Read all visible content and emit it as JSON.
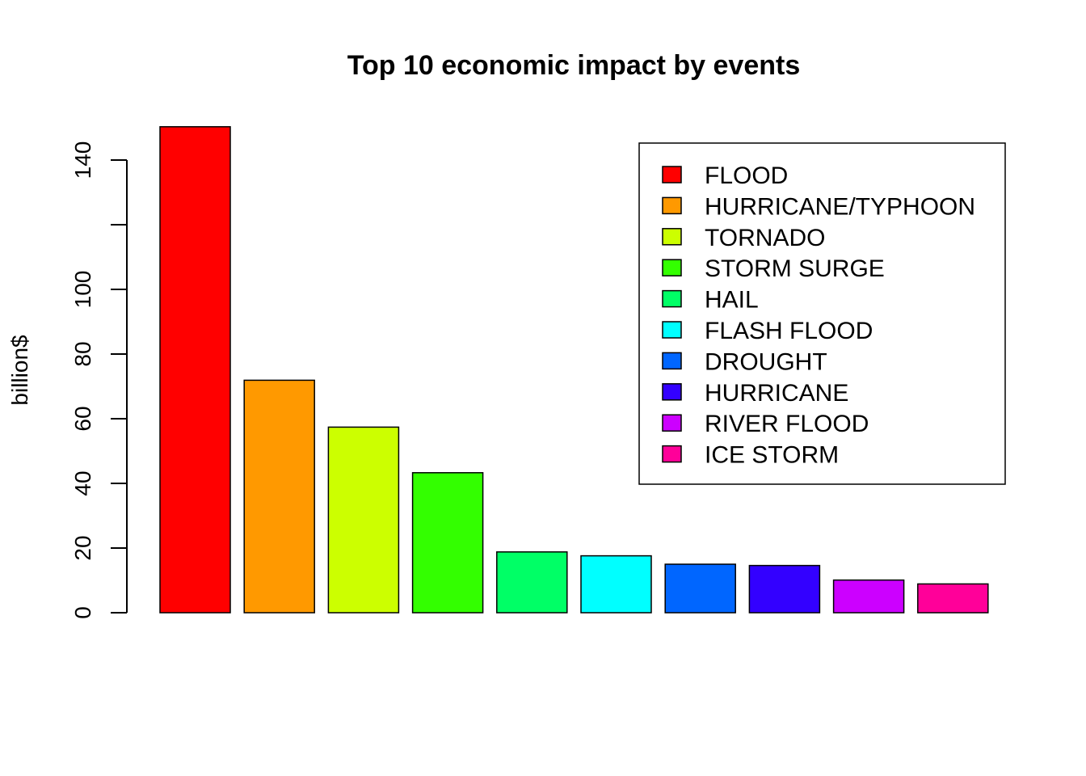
{
  "chart_data": {
    "type": "bar",
    "title": "Top 10 economic impact by events",
    "xlabel": "",
    "ylabel": "billion$",
    "ylim": [
      0,
      150.5
    ],
    "yticks": [
      0,
      20,
      40,
      60,
      80,
      100,
      120,
      140
    ],
    "ytick_labels": [
      "0",
      "20",
      "40",
      "60",
      "80",
      "100",
      "",
      "140"
    ],
    "categories": [
      "FLOOD",
      "HURRICANE/TYPHOON",
      "TORNADO",
      "STORM SURGE",
      "HAIL",
      "FLASH FLOOD",
      "DROUGHT",
      "HURRICANE",
      "RIVER FLOOD",
      "ICE STORM"
    ],
    "values": [
      150.3,
      71.9,
      57.4,
      43.3,
      18.8,
      17.6,
      15.0,
      14.6,
      10.1,
      8.9
    ],
    "colors": [
      "#FF0000",
      "#FF9900",
      "#CCFF00",
      "#33FF00",
      "#00FF66",
      "#00FFFF",
      "#0066FF",
      "#3300FF",
      "#CC00FF",
      "#FF0099"
    ],
    "grid": false,
    "legend_position": "top-right"
  }
}
